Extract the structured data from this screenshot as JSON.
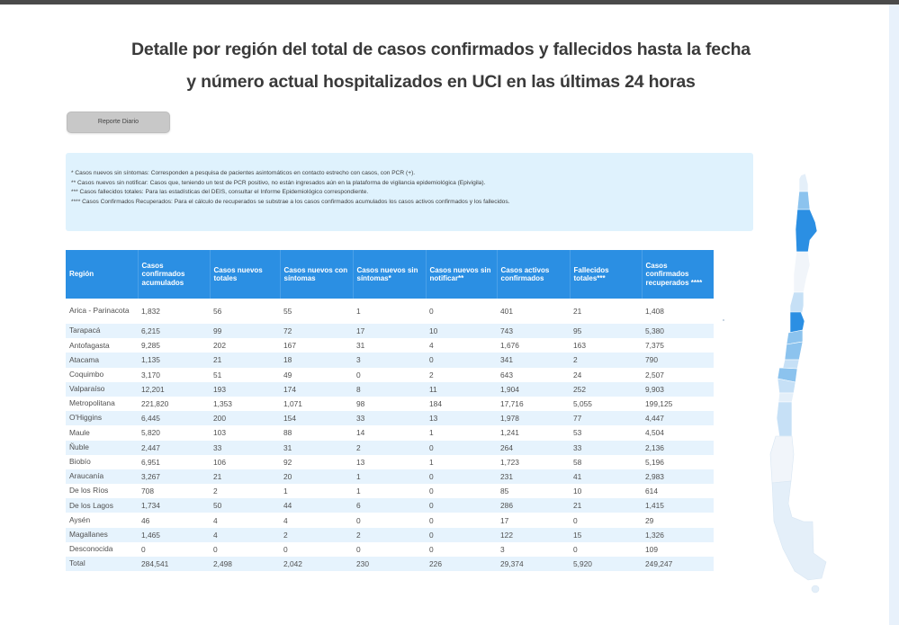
{
  "page": {
    "title_line1": "Detalle por región del total de casos confirmados y fallecidos hasta la fecha",
    "title_line2": "y número actual hospitalizados en UCI en las últimas 24 horas",
    "report_button": "Reporte Diario"
  },
  "notes": [
    "* Casos nuevos sin síntomas: Corresponden a pesquisa de pacientes asintomáticos en contacto estrecho con casos, con PCR (+).",
    "** Casos nuevos sin notificar: Casos que, teniendo un test de PCR positivo, no están ingresados aún en la plataforma de vigilancia epidemiológica (Epivigila).",
    "*** Casos fallecidos totales: Para las estadísticas del DEIS, consultar el Informe Epidemiológico correspondiente.",
    "**** Casos Confirmados Recuperados: Para el cálculo de recuperados se substrae a los casos confirmados acumulados los casos activos confirmados y los fallecidos."
  ],
  "table": {
    "headers": [
      "Región",
      "Casos confirmados acumulados",
      "Casos nuevos totales",
      "Casos nuevos con síntomas",
      "Casos nuevos sin síntomas*",
      "Casos nuevos sin notificar**",
      "Casos activos confirmados",
      "Fallecidos totales***",
      "Casos confirmados recuperados ****"
    ],
    "rows": [
      [
        "Arica - Parinacota",
        "1,832",
        "56",
        "55",
        "1",
        "0",
        "401",
        "21",
        "1,408"
      ],
      [
        "Tarapacá",
        "6,215",
        "99",
        "72",
        "17",
        "10",
        "743",
        "95",
        "5,380"
      ],
      [
        "Antofagasta",
        "9,285",
        "202",
        "167",
        "31",
        "4",
        "1,676",
        "163",
        "7,375"
      ],
      [
        "Atacama",
        "1,135",
        "21",
        "18",
        "3",
        "0",
        "341",
        "2",
        "790"
      ],
      [
        "Coquimbo",
        "3,170",
        "51",
        "49",
        "0",
        "2",
        "643",
        "24",
        "2,507"
      ],
      [
        "Valparaíso",
        "12,201",
        "193",
        "174",
        "8",
        "11",
        "1,904",
        "252",
        "9,903"
      ],
      [
        "Metropolitana",
        "221,820",
        "1,353",
        "1,071",
        "98",
        "184",
        "17,716",
        "5,055",
        "199,125"
      ],
      [
        "O'Higgins",
        "6,445",
        "200",
        "154",
        "33",
        "13",
        "1,978",
        "77",
        "4,447"
      ],
      [
        "Maule",
        "5,820",
        "103",
        "88",
        "14",
        "1",
        "1,241",
        "53",
        "4,504"
      ],
      [
        "Ñuble",
        "2,447",
        "33",
        "31",
        "2",
        "0",
        "264",
        "33",
        "2,136"
      ],
      [
        "Biobío",
        "6,951",
        "106",
        "92",
        "13",
        "1",
        "1,723",
        "58",
        "5,196"
      ],
      [
        "Araucanía",
        "3,267",
        "21",
        "20",
        "1",
        "0",
        "231",
        "41",
        "2,983"
      ],
      [
        "De los Ríos",
        "708",
        "2",
        "1",
        "1",
        "0",
        "85",
        "10",
        "614"
      ],
      [
        "De los Lagos",
        "1,734",
        "50",
        "44",
        "6",
        "0",
        "286",
        "21",
        "1,415"
      ],
      [
        "Aysén",
        "46",
        "4",
        "4",
        "0",
        "0",
        "17",
        "0",
        "29"
      ],
      [
        "Magallanes",
        "1,465",
        "4",
        "2",
        "2",
        "0",
        "122",
        "15",
        "1,326"
      ],
      [
        "Desconocida",
        "0",
        "0",
        "0",
        "0",
        "0",
        "3",
        "0",
        "109"
      ],
      [
        "Total",
        "284,541",
        "2,498",
        "2,042",
        "230",
        "226",
        "29,374",
        "5,920",
        "249,247"
      ]
    ]
  },
  "map": {
    "label": "chile-region-map",
    "colors": {
      "dark": "#2b8fe3",
      "medium": "#8cc3ee",
      "light": "#c6e0f6",
      "pale": "#e4eff9",
      "paler": "#f1f5fa"
    }
  }
}
